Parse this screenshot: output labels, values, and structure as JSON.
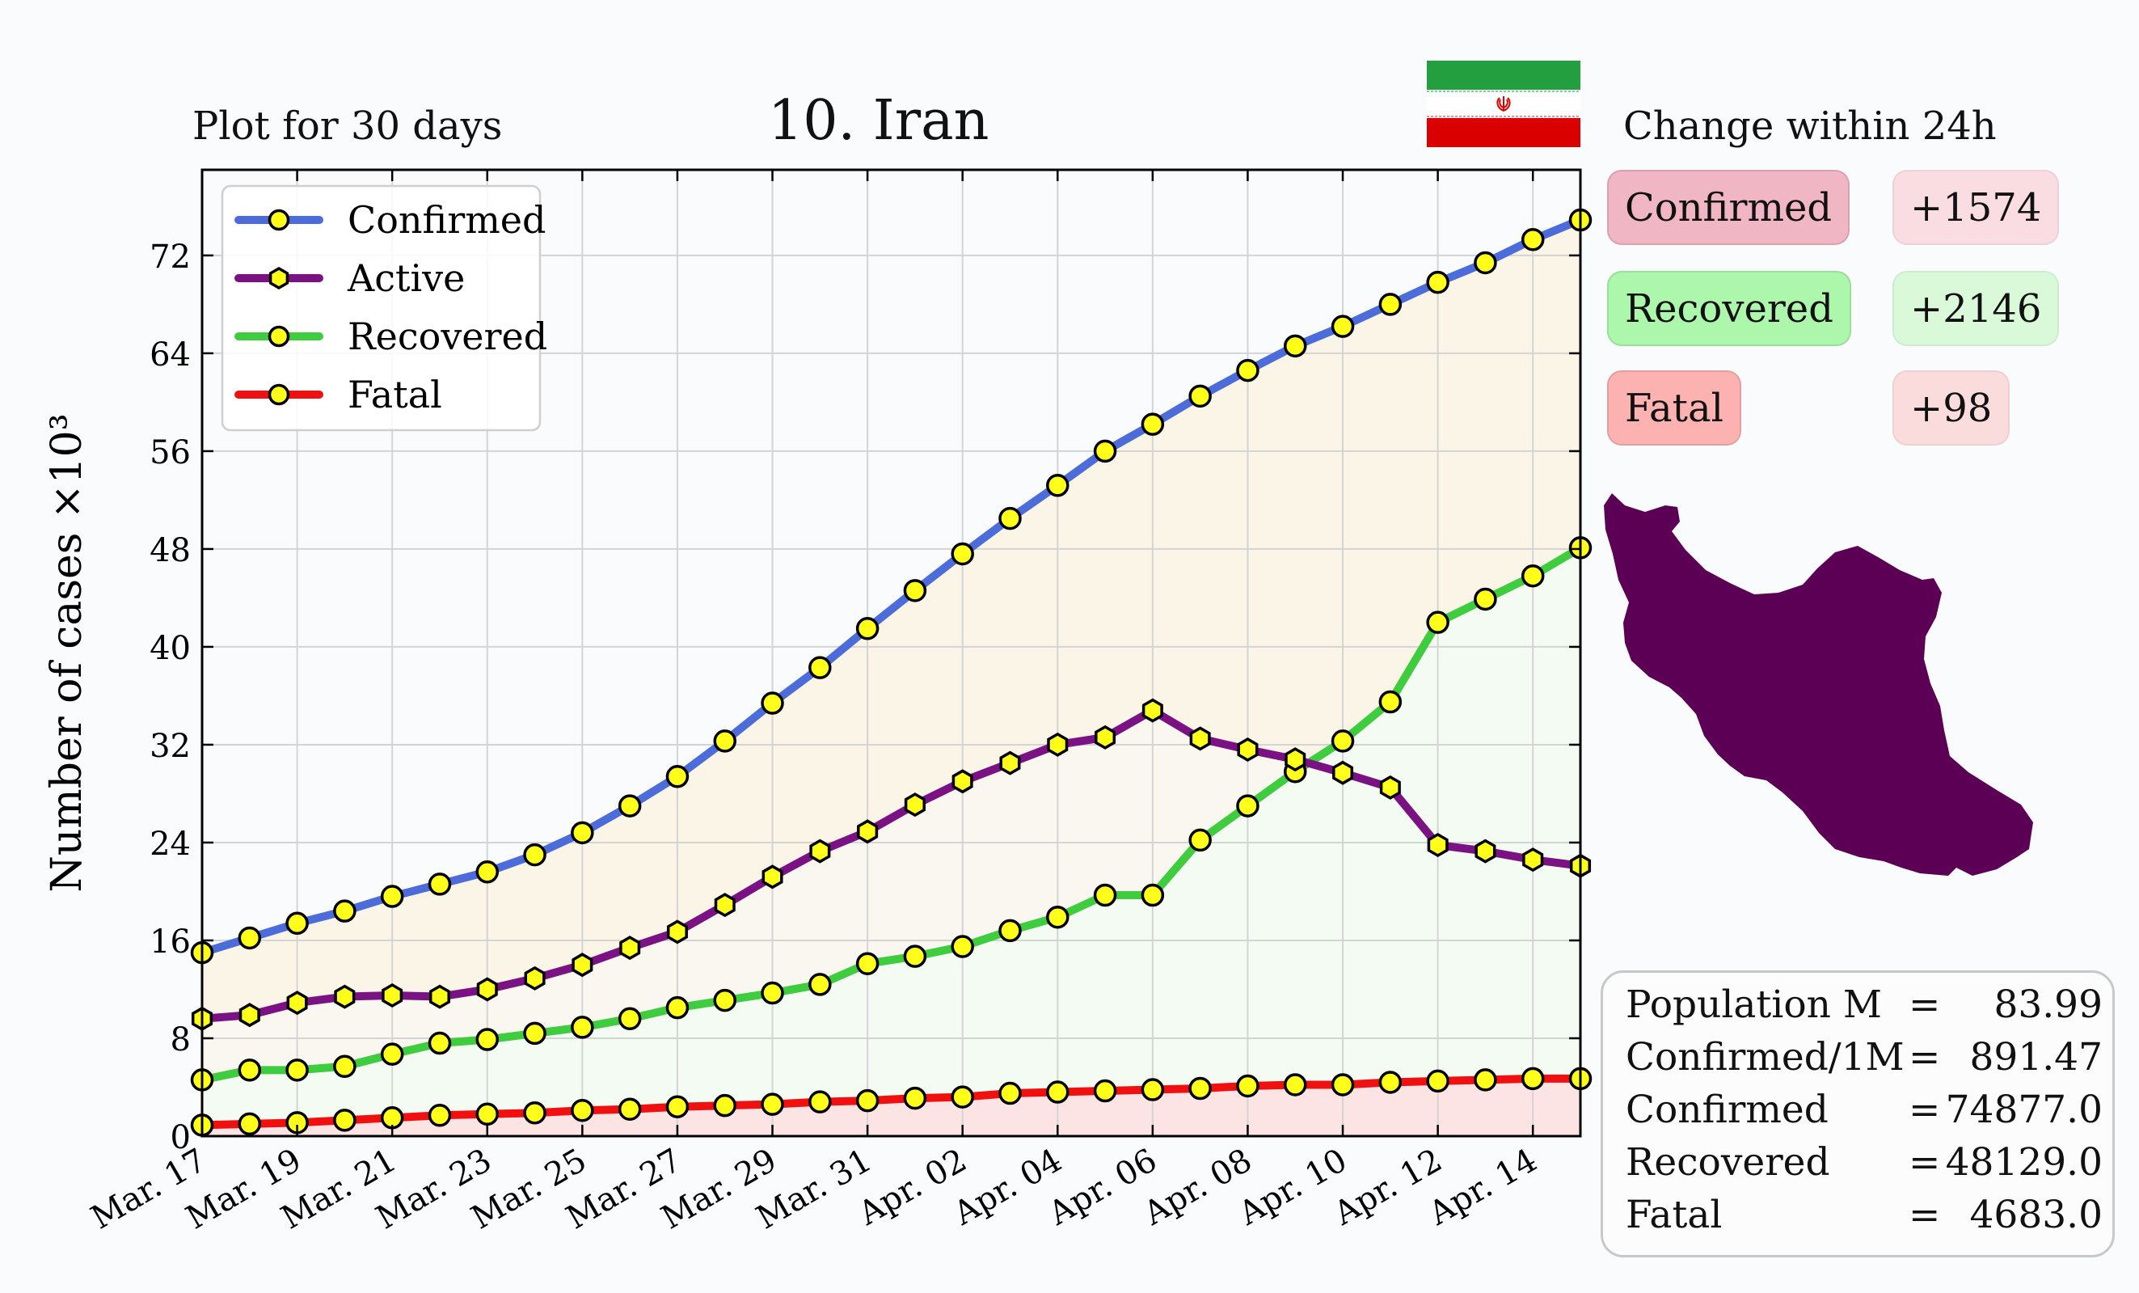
{
  "header": {
    "left_caption": "Plot for 30 days",
    "title": "10. Iran",
    "right_caption": "Change within 24h"
  },
  "changes": [
    {
      "label": "Confirmed",
      "value": "+1574",
      "label_color": "#f0b6c3",
      "value_color": "#f9dde2"
    },
    {
      "label": "Recovered",
      "value": "+2146",
      "label_color": "#adf7ad",
      "value_color": "#d9f9d9"
    },
    {
      "label": "Fatal",
      "value": "+98",
      "label_color": "#fdb2b2",
      "value_color": "#fbdcdc"
    }
  ],
  "stats": [
    {
      "key": "Population M",
      "eq": "=",
      "value": "83.99"
    },
    {
      "key": "Confirmed/1M",
      "eq": "=",
      "value": "891.47"
    },
    {
      "key": "Confirmed",
      "eq": "=",
      "value": "74877.0"
    },
    {
      "key": "Recovered",
      "eq": "=",
      "value": "48129.0"
    },
    {
      "key": "Fatal",
      "eq": "=",
      "value": "4683.0"
    }
  ],
  "flag": {
    "top": "#239f40",
    "middle": "#ffffff",
    "bottom": "#da0000"
  },
  "map": {
    "color": "#5c0055"
  },
  "chart_data": {
    "type": "line",
    "ylabel": "Number of cases ×10³",
    "xlabel": "",
    "ylim": [
      0,
      79
    ],
    "yticks": [
      0,
      8,
      16,
      24,
      32,
      40,
      48,
      56,
      64,
      72
    ],
    "grid": true,
    "legend_position": "top-left",
    "x": [
      "Mar. 17",
      "Mar. 18",
      "Mar. 19",
      "Mar. 20",
      "Mar. 21",
      "Mar. 22",
      "Mar. 23",
      "Mar. 24",
      "Mar. 25",
      "Mar. 26",
      "Mar. 27",
      "Mar. 28",
      "Mar. 29",
      "Mar. 30",
      "Mar. 31",
      "Apr. 01",
      "Apr. 02",
      "Apr. 03",
      "Apr. 04",
      "Apr. 05",
      "Apr. 06",
      "Apr. 07",
      "Apr. 08",
      "Apr. 09",
      "Apr. 10",
      "Apr. 11",
      "Apr. 12",
      "Apr. 13",
      "Apr. 14",
      "Apr. 15"
    ],
    "xticklabels": [
      "Mar. 17",
      "Mar. 19",
      "Mar. 21",
      "Mar. 23",
      "Mar. 25",
      "Mar. 27",
      "Mar. 29",
      "Mar. 31",
      "Apr. 02",
      "Apr. 04",
      "Apr. 06",
      "Apr. 08",
      "Apr. 10",
      "Apr. 12",
      "Apr. 14"
    ],
    "series": [
      {
        "name": "Confirmed",
        "color": "#4b6cd9",
        "marker": "circle",
        "fill": "#fbf5e8",
        "values": [
          15.0,
          16.2,
          17.4,
          18.4,
          19.6,
          20.6,
          21.6,
          23.0,
          24.8,
          27.0,
          29.4,
          32.3,
          35.4,
          38.3,
          41.5,
          44.6,
          47.6,
          50.5,
          53.2,
          56.0,
          58.2,
          60.5,
          62.6,
          64.6,
          66.2,
          68.0,
          69.8,
          71.4,
          73.3,
          74.9
        ]
      },
      {
        "name": "Active",
        "color": "#7b1284",
        "marker": "hexagon",
        "fill": "#faf7f0",
        "values": [
          9.6,
          9.9,
          10.9,
          11.4,
          11.5,
          11.4,
          12.0,
          12.9,
          14.0,
          15.4,
          16.7,
          18.9,
          21.2,
          23.3,
          24.9,
          27.1,
          29.0,
          30.5,
          32.0,
          32.6,
          34.8,
          32.5,
          31.6,
          30.8,
          29.7,
          28.5,
          23.8,
          23.3,
          22.6,
          22.1
        ]
      },
      {
        "name": "Recovered",
        "color": "#3fcc3f",
        "marker": "circle",
        "fill": "#f4fbf3",
        "values": [
          4.6,
          5.4,
          5.4,
          5.7,
          6.7,
          7.6,
          7.9,
          8.4,
          8.9,
          9.6,
          10.5,
          11.1,
          11.7,
          12.4,
          14.1,
          14.7,
          15.5,
          16.8,
          17.9,
          19.7,
          19.7,
          24.2,
          27.0,
          29.8,
          32.3,
          35.5,
          42.0,
          43.9,
          45.8,
          48.1
        ]
      },
      {
        "name": "Fatal",
        "color": "#f01010",
        "marker": "circle",
        "fill": "#fde4e4",
        "values": [
          0.9,
          1.0,
          1.1,
          1.3,
          1.5,
          1.7,
          1.8,
          1.9,
          2.1,
          2.2,
          2.4,
          2.5,
          2.6,
          2.8,
          2.9,
          3.1,
          3.2,
          3.5,
          3.6,
          3.7,
          3.8,
          3.9,
          4.1,
          4.2,
          4.2,
          4.4,
          4.5,
          4.6,
          4.7,
          4.7
        ]
      }
    ]
  }
}
